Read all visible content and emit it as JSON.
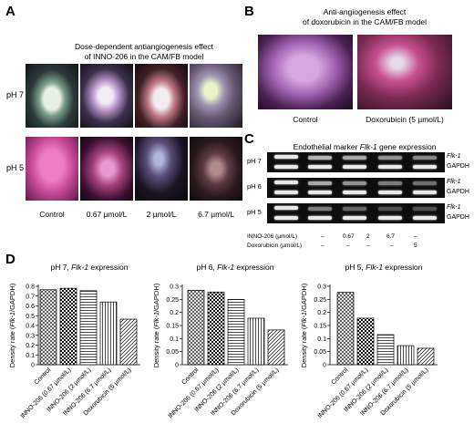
{
  "panelA": {
    "letter": "A",
    "title_line1": "Dose-dependent antiangiogenesis effect",
    "title_line2": "of INNO-206 in the CAM/FB model",
    "row_labels": [
      "pH 7",
      "pH 5"
    ],
    "col_labels": [
      "Control",
      "0.67 µmol/L",
      "2 µmol/L",
      "6.7 µmol/L"
    ]
  },
  "panelB": {
    "letter": "B",
    "title_line1": "Anti-angiogenesis effect",
    "title_line2": "of doxorubicin in the CAM/FB model",
    "labels": [
      "Control",
      "Doxorubicin (5 µmol/L)"
    ]
  },
  "panelC": {
    "letter": "C",
    "title_prefix": "Endothelial marker ",
    "title_gene": "Flk-1",
    "title_suffix": " gene expression",
    "gels": [
      {
        "ph": "pH 7",
        "top": "Flk-1",
        "bottom": "GAPDH"
      },
      {
        "ph": "pH 6",
        "top": "Flk-1",
        "bottom": "GAPDH"
      },
      {
        "ph": "pH 5",
        "top": "Flk-1",
        "bottom": "GAPDH"
      }
    ],
    "table": {
      "row1_label": "INNO-206 (µmol/L)",
      "row1_values": [
        "–",
        "0.67",
        "2",
        "6.7",
        "–"
      ],
      "row2_label": "Doxorubicin (µmol/L)",
      "row2_values": [
        "–",
        "–",
        "–",
        "–",
        "5"
      ]
    }
  },
  "panelD": {
    "letter": "D"
  },
  "chart_data": [
    {
      "type": "bar",
      "title_prefix": "pH 7, ",
      "title_gene": "Flk-1",
      "title_suffix": " expression",
      "ylabel_prefix": "Density rate (",
      "ylabel_gene": "Flk-1",
      "ylabel_suffix": "/GAPDH)",
      "categories": [
        "Control",
        "INNO-206 (0.67 µmol/L)",
        "INNO-206 (2 µmol/L)",
        "INNO-206 (6.7 µmol/L)",
        "Doxorubicin (5 µmol/L)"
      ],
      "values": [
        0.765,
        0.78,
        0.755,
        0.64,
        0.465
      ],
      "ylim": [
        0,
        0.8
      ],
      "yticks": [
        0,
        0.1,
        0.2,
        0.3,
        0.4,
        0.5,
        0.6,
        0.7,
        0.8
      ]
    },
    {
      "type": "bar",
      "title_prefix": "pH 6, ",
      "title_gene": "Flk-1",
      "title_suffix": " expression",
      "ylabel_prefix": "Density rate (",
      "ylabel_gene": "Flk-1",
      "ylabel_suffix": "/GAPDH)",
      "categories": [
        "Control",
        "INNO-206 (0.67 µmol/L)",
        "INNO-206 (2 µmol/L)",
        "INNO-206 (6.7 µmol/L)",
        "Doxorubicin (5 µmol/L)"
      ],
      "values": [
        0.285,
        0.278,
        0.25,
        0.178,
        0.133
      ],
      "ylim": [
        0,
        0.3
      ],
      "yticks": [
        0,
        0.05,
        0.1,
        0.15,
        0.2,
        0.25,
        0.3
      ]
    },
    {
      "type": "bar",
      "title_prefix": "pH 5, ",
      "title_gene": "Flk-1",
      "title_suffix": " expression",
      "ylabel_prefix": "Density rate (",
      "ylabel_gene": "Flk-1",
      "ylabel_suffix": "/GAPDH)",
      "categories": [
        "Control",
        "INNO-206 (0.67 µmol/L)",
        "INNO-206 (2 µmol/L)",
        "INNO-206 (6.7 µmol/L)",
        "Doxorubicin (5 µmol/L)"
      ],
      "values": [
        0.277,
        0.178,
        0.115,
        0.073,
        0.063
      ],
      "ylim": [
        0,
        0.3
      ],
      "yticks": [
        0,
        0.05,
        0.1,
        0.15,
        0.2,
        0.25,
        0.3
      ]
    }
  ]
}
